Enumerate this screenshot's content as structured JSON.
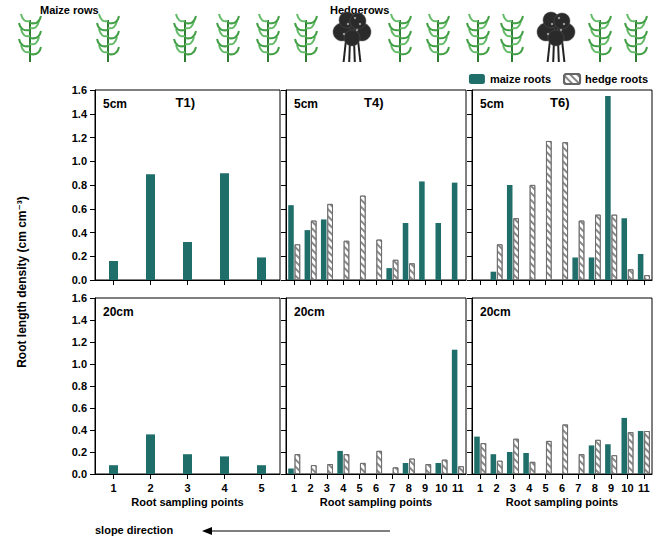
{
  "header_labels": [
    "Maize rows",
    "Hedgerows"
  ],
  "ylabel": "Root length density (cm cm⁻³)",
  "arrow_label": "slope direction",
  "chart_data": [
    {
      "type": "bar",
      "title": "T1)",
      "annotation": "5cm",
      "categories": [
        "1",
        "2",
        "3",
        "4",
        "5"
      ],
      "series": [
        {
          "name": "maize roots",
          "color": "#1f6e6a",
          "values": [
            0.16,
            0.89,
            0.32,
            0.9,
            0.19
          ]
        }
      ],
      "ylim": [
        0,
        1.6
      ],
      "yticks": [
        {
          "value": 0,
          "label": "0.0"
        },
        {
          "value": 0.2,
          "label": "0.2"
        },
        {
          "value": 0.4,
          "label": "0.4"
        },
        {
          "value": 0.6,
          "label": "0.6"
        },
        {
          "value": 0.8,
          "label": "0.8"
        },
        {
          "value": 1.0,
          "label": "1.0"
        },
        {
          "value": 1.2,
          "label": "1.2"
        },
        {
          "value": 1.4,
          "label": "1.4"
        },
        {
          "value": 1.6,
          "label": "1.6"
        }
      ],
      "tick_labels": "y"
    },
    {
      "type": "bar",
      "annotation": "20cm",
      "xlabel": "Root sampling points",
      "categories": [
        "1",
        "2",
        "3",
        "4",
        "5"
      ],
      "series": [
        {
          "name": "maize roots",
          "color": "#1f6e6a",
          "values": [
            0.08,
            0.36,
            0.18,
            0.16,
            0.08
          ]
        }
      ],
      "ylim": [
        0,
        1.6
      ],
      "yticks": [
        {
          "value": 0,
          "label": "0.0"
        },
        {
          "value": 0.2,
          "label": "0.2"
        },
        {
          "value": 0.4,
          "label": "0.4"
        },
        {
          "value": 0.6,
          "label": "0.6"
        },
        {
          "value": 0.8,
          "label": "0.8"
        },
        {
          "value": 1.0,
          "label": "1.0"
        },
        {
          "value": 1.2,
          "label": "1.2"
        },
        {
          "value": 1.4,
          "label": "1.4"
        },
        {
          "value": 1.6,
          "label": "1.6"
        }
      ]
    },
    {
      "type": "bar",
      "title": "T4)",
      "annotation": "5cm",
      "categories": [
        "1",
        "2",
        "3",
        "4",
        "5",
        "6",
        "7",
        "8",
        "9",
        "10",
        "11"
      ],
      "series": [
        {
          "name": "maize roots",
          "color": "#1f6e6a",
          "values": [
            0.63,
            0.42,
            0.51,
            null,
            null,
            null,
            0.1,
            0.48,
            0.83,
            0.48,
            0.82
          ]
        },
        {
          "name": "hedge roots",
          "color": "#ffffff",
          "marker": "hatch",
          "values": [
            0.3,
            0.5,
            0.64,
            0.33,
            0.71,
            0.34,
            0.17,
            0.14,
            null,
            null,
            null
          ]
        }
      ],
      "ylim": [
        0,
        1.6
      ],
      "yticks": [
        {
          "value": 0,
          "label": "0.0"
        },
        {
          "value": 0.2,
          "label": "0.2"
        },
        {
          "value": 0.4,
          "label": "0.4"
        },
        {
          "value": 0.6,
          "label": "0.6"
        },
        {
          "value": 0.8,
          "label": "0.8"
        },
        {
          "value": 1.0,
          "label": "1.0"
        },
        {
          "value": 1.2,
          "label": "1.2"
        },
        {
          "value": 1.4,
          "label": "1.4"
        },
        {
          "value": 1.6,
          "label": "1.6"
        }
      ],
      "tick_labels": false
    },
    {
      "type": "bar",
      "annotation": "20cm",
      "xlabel": "Root sampling points",
      "categories": [
        "1",
        "2",
        "3",
        "4",
        "5",
        "6",
        "7",
        "8",
        "9",
        "10",
        "11"
      ],
      "series": [
        {
          "name": "maize roots",
          "color": "#1f6e6a",
          "values": [
            0.05,
            null,
            null,
            0.21,
            null,
            null,
            null,
            0.1,
            null,
            0.1,
            1.13
          ]
        },
        {
          "name": "hedge roots",
          "color": "#ffffff",
          "marker": "hatch",
          "values": [
            0.18,
            0.08,
            0.09,
            0.18,
            0.1,
            0.21,
            0.06,
            0.14,
            0.09,
            0.13,
            0.07
          ]
        }
      ],
      "ylim": [
        0,
        1.6
      ],
      "yticks": [
        {
          "value": 0,
          "label": "0.0"
        },
        {
          "value": 0.2,
          "label": "0.2"
        },
        {
          "value": 0.4,
          "label": "0.4"
        },
        {
          "value": 0.6,
          "label": "0.6"
        },
        {
          "value": 0.8,
          "label": "0.8"
        },
        {
          "value": 1.0,
          "label": "1.0"
        },
        {
          "value": 1.2,
          "label": "1.2"
        },
        {
          "value": 1.4,
          "label": "1.4"
        },
        {
          "value": 1.6,
          "label": "1.6"
        }
      ],
      "tick_labels": "x"
    },
    {
      "type": "bar",
      "title": "T6)",
      "annotation": "5cm",
      "legend": "top right",
      "categories": [
        "1",
        "2",
        "3",
        "4",
        "5",
        "6",
        "7",
        "8",
        "9",
        "10",
        "11"
      ],
      "series": [
        {
          "name": "maize roots",
          "color": "#1f6e6a",
          "values": [
            null,
            0.07,
            0.8,
            null,
            null,
            null,
            0.19,
            0.19,
            1.55,
            0.52,
            0.22
          ]
        },
        {
          "name": "hedge roots",
          "color": "#ffffff",
          "marker": "hatch",
          "values": [
            null,
            0.3,
            0.52,
            0.8,
            1.17,
            1.16,
            0.5,
            0.55,
            0.55,
            0.09,
            0.04
          ]
        }
      ],
      "ylim": [
        0,
        1.6
      ],
      "yticks": [
        {
          "value": 0,
          "label": "0.0"
        },
        {
          "value": 0.2,
          "label": "0.2"
        },
        {
          "value": 0.4,
          "label": "0.4"
        },
        {
          "value": 0.6,
          "label": "0.6"
        },
        {
          "value": 0.8,
          "label": "0.8"
        },
        {
          "value": 1.0,
          "label": "1.0"
        },
        {
          "value": 1.2,
          "label": "1.2"
        },
        {
          "value": 1.4,
          "label": "1.4"
        },
        {
          "value": 1.6,
          "label": "1.6"
        }
      ],
      "tick_labels": false
    },
    {
      "type": "bar",
      "annotation": "20cm",
      "xlabel": "Root sampling points",
      "categories": [
        "1",
        "2",
        "3",
        "4",
        "5",
        "6",
        "7",
        "8",
        "9",
        "10",
        "11"
      ],
      "series": [
        {
          "name": "maize roots",
          "color": "#1f6e6a",
          "values": [
            0.34,
            0.18,
            0.2,
            0.19,
            null,
            null,
            null,
            0.26,
            0.27,
            0.51,
            0.39
          ]
        },
        {
          "name": "hedge roots",
          "color": "#ffffff",
          "marker": "hatch",
          "values": [
            0.28,
            0.12,
            0.32,
            0.11,
            0.3,
            0.45,
            0.18,
            0.31,
            0.17,
            0.38,
            0.39
          ]
        }
      ],
      "ylim": [
        0,
        1.6
      ],
      "yticks": [
        {
          "value": 0,
          "label": "0.0"
        },
        {
          "value": 0.2,
          "label": "0.2"
        },
        {
          "value": 0.4,
          "label": "0.4"
        },
        {
          "value": 0.6,
          "label": "0.6"
        },
        {
          "value": 0.8,
          "label": "0.8"
        },
        {
          "value": 1.0,
          "label": "1.0"
        },
        {
          "value": 1.2,
          "label": "1.2"
        },
        {
          "value": 1.4,
          "label": "1.4"
        },
        {
          "value": 1.6,
          "label": "1.6"
        }
      ],
      "tick_labels": "x"
    }
  ]
}
